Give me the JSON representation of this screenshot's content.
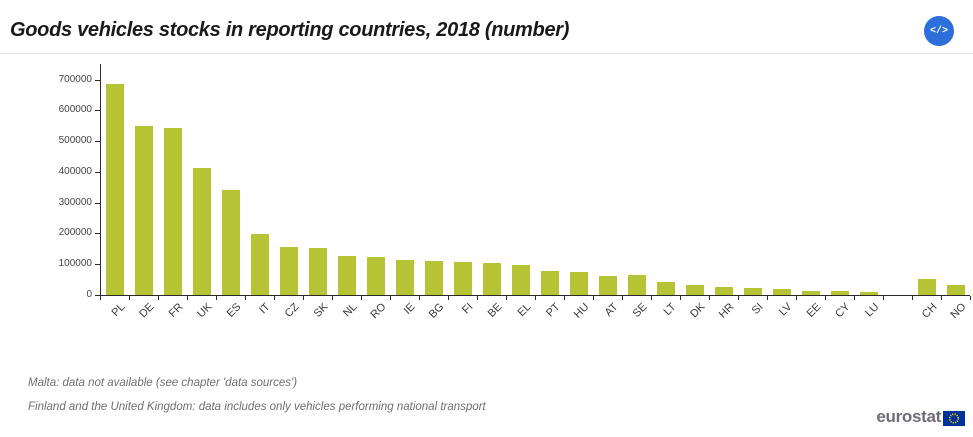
{
  "header": {
    "title": "Goods vehicles stocks in reporting countries, 2018 (number)",
    "embed_button_label": "</>"
  },
  "chart_data": {
    "type": "bar",
    "title": "Goods vehicles stocks in reporting countries, 2018 (number)",
    "xlabel": "",
    "ylabel": "",
    "ylim": [
      0,
      700000
    ],
    "y_ticks": [
      0,
      100000,
      200000,
      300000,
      400000,
      500000,
      600000,
      700000
    ],
    "grid": false,
    "legend": "none",
    "bar_color": "#b5c334",
    "categories": [
      "PL",
      "DE",
      "FR",
      "UK",
      "ES",
      "IT",
      "CZ",
      "SK",
      "NL",
      "RO",
      "IE",
      "BG",
      "FI",
      "BE",
      "EL",
      "PT",
      "HU",
      "AT",
      "SE",
      "LT",
      "DK",
      "HR",
      "SI",
      "LV",
      "EE",
      "CY",
      "LU",
      "CH",
      "NO"
    ],
    "values": [
      685000,
      550000,
      543000,
      411000,
      340000,
      197000,
      157000,
      154000,
      128000,
      124000,
      114000,
      110000,
      108000,
      105000,
      97000,
      78000,
      74000,
      63000,
      66000,
      43000,
      34000,
      27000,
      24000,
      19000,
      14000,
      12000,
      9000,
      52000,
      31000
    ],
    "gap_after_category": "LU"
  },
  "footnotes": [
    "Malta: data not available (see chapter 'data sources')",
    "Finland and the United Kingdom: data includes only vehicles performing national transport"
  ],
  "logo": {
    "text": "eurostat"
  },
  "colors": {
    "bar": "#b5c334",
    "embed_button": "#2d6fd9",
    "axis": "#2b2b2b",
    "eu_flag_blue": "#003399",
    "eu_flag_stars": "#ffcc00"
  }
}
